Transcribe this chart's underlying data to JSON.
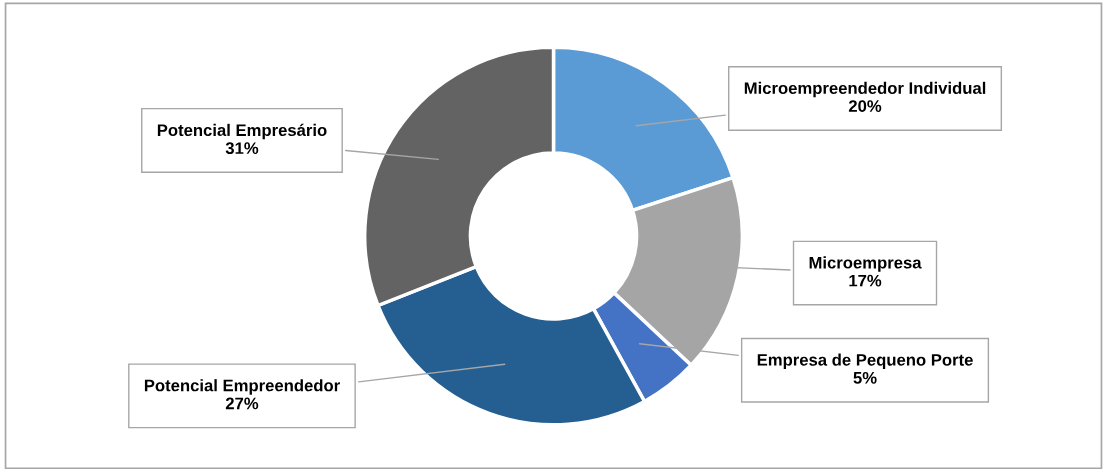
{
  "chart_data": {
    "type": "donut",
    "categories": [
      "Microempreendedor Individual",
      "Microempresa",
      "Empresa de Pequeno Porte",
      "Potencial Empreendedor",
      "Potencial Empresário"
    ],
    "values": [
      20,
      17,
      5,
      27,
      31
    ],
    "colors": [
      "#5b9bd5",
      "#a5a5a5",
      "#4472c4",
      "#255e91",
      "#636363"
    ],
    "value_labels": [
      "20%",
      "17%",
      "5%",
      "27%",
      "31%"
    ]
  }
}
